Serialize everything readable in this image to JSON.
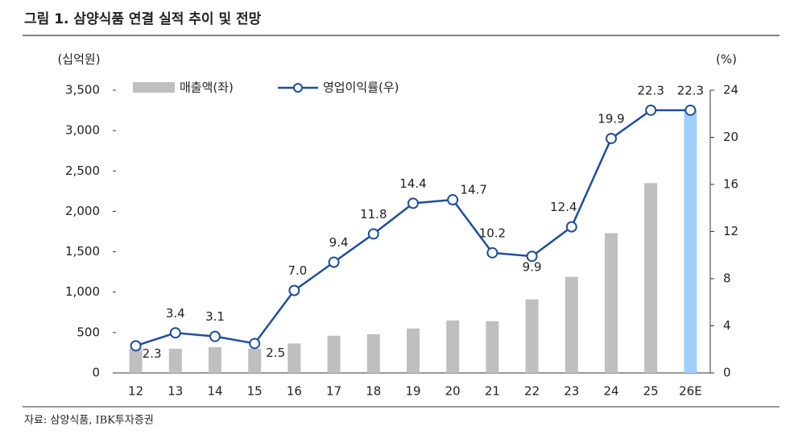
{
  "chart_data": {
    "type": "combo",
    "title": "그림 1. 삼양식품 연결 실적 추이 및 전망",
    "source": "자료: 삼양식품, IBK투자증권",
    "y_label": "(십억원)",
    "y2_label": "(%)",
    "categories": [
      "12",
      "13",
      "14",
      "15",
      "16",
      "17",
      "18",
      "19",
      "20",
      "21",
      "22",
      "23",
      "24",
      "25",
      "26E"
    ],
    "series": [
      {
        "name": "매출액(좌)",
        "type": "bar",
        "color": "#bfbfbf",
        "colors": [
          "#bfbfbf",
          "#bfbfbf",
          "#bfbfbf",
          "#bfbfbf",
          "#bfbfbf",
          "#bfbfbf",
          "#bfbfbf",
          "#bfbfbf",
          "#bfbfbf",
          "#bfbfbf",
          "#bfbfbf",
          "#bfbfbf",
          "#bfbfbf",
          "#bfbfbf",
          "#9fcfff"
        ],
        "values": [
          300,
          300,
          320,
          300,
          365,
          460,
          480,
          550,
          650,
          640,
          910,
          1190,
          1730,
          2350,
          3250
        ]
      },
      {
        "name": "영업이익률(우)",
        "type": "line",
        "axis": "y2",
        "color": "#1f4e9c",
        "values": [
          2.3,
          3.4,
          3.1,
          2.5,
          7,
          9.4,
          11.8,
          14.4,
          14.7,
          10.2,
          9.9,
          12.4,
          19.9,
          22.3,
          22.3
        ],
        "value_labels": [
          "2.3",
          "3.4",
          "3.1",
          "2.5",
          "7.0",
          "9.4",
          "11.8",
          "14.4",
          "14.7",
          "10.2",
          "9.9",
          "12.4",
          "19.9",
          "22.3",
          "22.3"
        ]
      }
    ],
    "ylim": [
      0,
      3500
    ],
    "yticks": [
      0,
      500,
      {
        "value": 1000,
        "label": "1,000"
      },
      {
        "value": 1500,
        "label": "1,500"
      },
      {
        "value": 2000,
        "label": "2,000"
      },
      {
        "value": 2500,
        "label": "2,500"
      },
      {
        "value": 3000,
        "label": "3,000"
      },
      {
        "value": 3500,
        "label": "3,500"
      }
    ],
    "y2lim": [
      0,
      24
    ],
    "y2ticks": [
      0,
      4,
      8,
      12,
      16,
      20,
      24
    ]
  }
}
